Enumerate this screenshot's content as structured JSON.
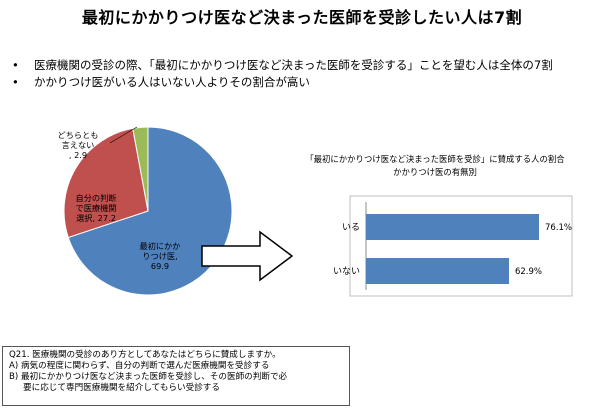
{
  "page": {
    "title": "最初にかかりつけ医など決まった医師を受診したい人は7割",
    "bullet_symbol": "•",
    "bullets": [
      "医療機関の受診の際、「最初にかかりつけ医など決まった医師を受診する」ことを望む人は全体の7割",
      "かかりつけ医がいる人はいない人よりその割合が高い"
    ]
  },
  "chart_data": [
    {
      "type": "pie",
      "slices": [
        {
          "label_lines": [
            "最初にかか",
            "りつけ医,",
            "69.9"
          ],
          "value": 69.9,
          "color": "#4f81bd"
        },
        {
          "label_lines": [
            "自分の判断",
            "で医療機関",
            "選択, 27.2"
          ],
          "value": 27.2,
          "color": "#c0504d"
        },
        {
          "label_lines": [
            "どちらとも",
            "言えない",
            ", 2.9"
          ],
          "value": 2.9,
          "color": "#9bbb59"
        }
      ]
    },
    {
      "type": "bar",
      "orientation": "horizontal",
      "title_lines": [
        "「最初にかかりつけ医など決まった医師を受診」に賛成する人の割合",
        "かかりつけ医の有無別"
      ],
      "categories": [
        "いる",
        "いない"
      ],
      "values": [
        76.1,
        62.9
      ],
      "value_labels": [
        "76.1%",
        "62.9%"
      ],
      "xlim": [
        0,
        100
      ],
      "color": "#4f81bd"
    }
  ],
  "question": {
    "q_line": "Q21. 医療機関の受診のあり方としてあなたはどちらに賛成しますか。",
    "option_a": "A) 病気の程度に関わらず、自分の判断で選んだ医療機関を受診する",
    "option_b_line1": "B) 最初にかかりつけ医など決まった医師を受診し、その医師の判断で必",
    "option_b_line2": "要に応じて専門医療機関を紹介してもらい受診する"
  }
}
